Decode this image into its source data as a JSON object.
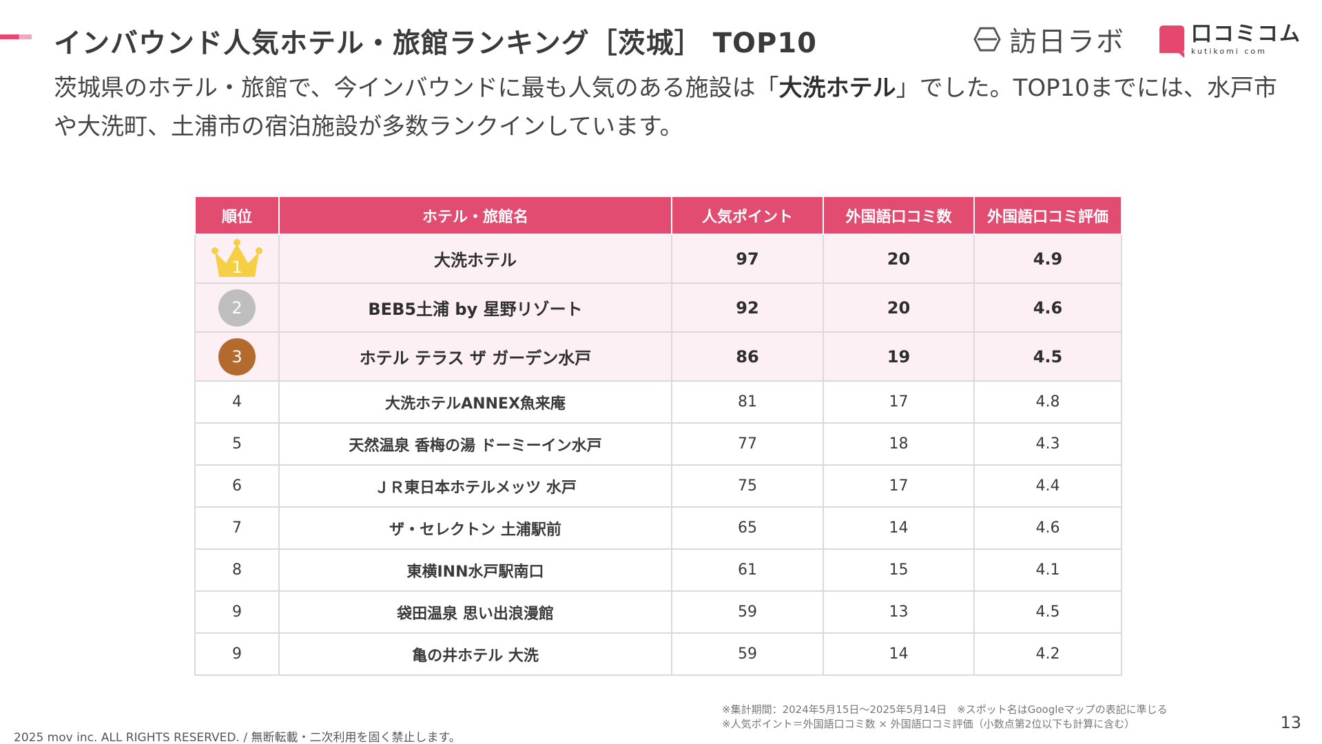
{
  "header": {
    "title": "インバウンド人気ホテル・旅館ランキング［茨城］ TOP10",
    "accent_colors": [
      "#e6476f",
      "#f2a9bb"
    ]
  },
  "logos": {
    "houjin_icon": "hexagon-logo-icon",
    "houjin_name": "訪日ラボ",
    "kuchikomi_name": "口コミコム",
    "kuchikomi_sub": "kutikomi com",
    "kuchikomi_color": "#e6476f"
  },
  "lead": {
    "part1": "茨城県のホテル・旅館で、今インバウンドに最も人気のある施設は「",
    "highlight": "大洗ホテル",
    "part2": "」でした。TOP10までには、水戸市や大洗町、土浦市の宿泊施設が多数ランクインしています。"
  },
  "table": {
    "header_color": "#e14c70",
    "columns": [
      "順位",
      "ホテル・旅館名",
      "人気ポイント",
      "外国語口コミ数",
      "外国語口コミ評価"
    ],
    "rows": [
      {
        "rank": "1",
        "rank_icon": "gold-crown-icon",
        "name": "大洗ホテル",
        "points": "97",
        "reviews": "20",
        "rating": "4.9"
      },
      {
        "rank": "2",
        "rank_icon": "silver-medal-icon",
        "name": "BEB5土浦 by 星野リゾート",
        "points": "92",
        "reviews": "20",
        "rating": "4.6"
      },
      {
        "rank": "3",
        "rank_icon": "bronze-medal-icon",
        "name": "ホテル テラス ザ ガーデン水戸",
        "points": "86",
        "reviews": "19",
        "rating": "4.5"
      },
      {
        "rank": "4",
        "name": "大洗ホテルANNEX魚来庵",
        "points": "81",
        "reviews": "17",
        "rating": "4.8"
      },
      {
        "rank": "5",
        "name": "天然温泉 香梅の湯 ドーミーイン水戸",
        "points": "77",
        "reviews": "18",
        "rating": "4.3"
      },
      {
        "rank": "6",
        "name": "ＪＲ東日本ホテルメッツ 水戸",
        "points": "75",
        "reviews": "17",
        "rating": "4.4"
      },
      {
        "rank": "7",
        "name": "ザ・セレクトン 土浦駅前",
        "points": "65",
        "reviews": "14",
        "rating": "4.6"
      },
      {
        "rank": "8",
        "name": "東横INN水戸駅南口",
        "points": "61",
        "reviews": "15",
        "rating": "4.1"
      },
      {
        "rank": "9",
        "name": "袋田温泉 思い出浪漫館",
        "points": "59",
        "reviews": "13",
        "rating": "4.5"
      },
      {
        "rank": "9",
        "name": "亀の井ホテル 大洗",
        "points": "59",
        "reviews": "14",
        "rating": "4.2"
      }
    ]
  },
  "notes": {
    "line1": "※集計期間：2024年5月15日〜2025年5月14日　※スポット名はGoogleマップの表記に準じる",
    "line2": "※人気ポイント＝外国語口コミ数 × 外国語口コミ評価（小数点第2位以下も計算に含む）"
  },
  "footer": {
    "copyright": "2025 mov inc. ALL RIGHTS RESERVED. / 無断転載・二次利用を固く禁止します。",
    "page_number": "13"
  }
}
